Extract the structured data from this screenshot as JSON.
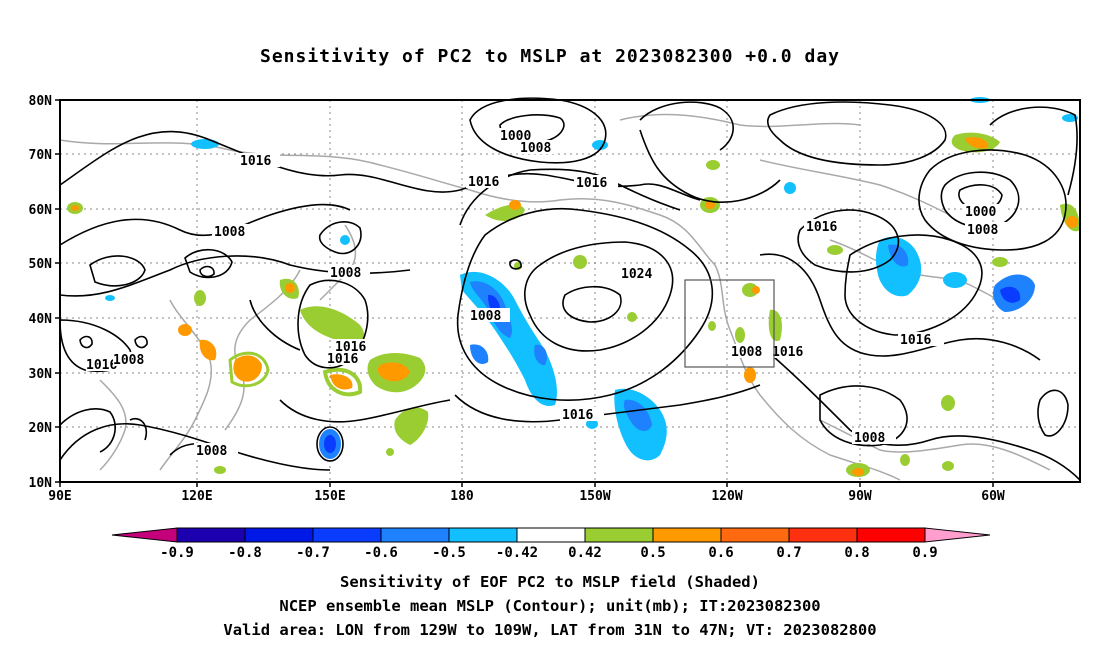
{
  "title": "Sensitivity of PC2 to MSLP at 2023082300 +0.0 day",
  "map": {
    "lon_ticks": [
      "90E",
      "120E",
      "150E",
      "180",
      "150W",
      "120W",
      "90W",
      "60W"
    ],
    "lat_ticks": [
      "80N",
      "70N",
      "60N",
      "50N",
      "40N",
      "30N",
      "20N",
      "10N"
    ],
    "valid_box": {
      "lon_west": "129W",
      "lon_east": "109W",
      "lat_south": "31N",
      "lat_north": "47N"
    },
    "contour_labels": [
      "1000",
      "1008",
      "1016",
      "1016",
      "1016",
      "1008",
      "1008",
      "1024",
      "1008",
      "1016",
      "1016",
      "1016",
      "1016",
      "1008",
      "1016",
      "1008",
      "1008",
      "1016",
      "1000",
      "1008",
      "1008",
      "1016",
      "1008"
    ]
  },
  "colorbar": {
    "labels": [
      "-0.9",
      "-0.8",
      "-0.7",
      "-0.6",
      "-0.5",
      "-0.42",
      "0.42",
      "0.5",
      "0.6",
      "0.7",
      "0.8",
      "0.9"
    ],
    "colors": [
      "#c4007a",
      "#1c00b0",
      "#0018e6",
      "#0a3cff",
      "#1e82ff",
      "#12c0ff",
      "#ffffff",
      "#9acd32",
      "#ff9900",
      "#ff6a10",
      "#ff3010",
      "#ff0000",
      "#ff9ecf"
    ]
  },
  "footer": {
    "line1": "Sensitivity of EOF PC2 to MSLP field (Shaded)",
    "line2": "NCEP ensemble mean MSLP (Contour); unit(mb); IT:2023082300",
    "line3": "Valid area: LON from 129W to 109W, LAT from 31N to 47N; VT: 2023082800"
  }
}
